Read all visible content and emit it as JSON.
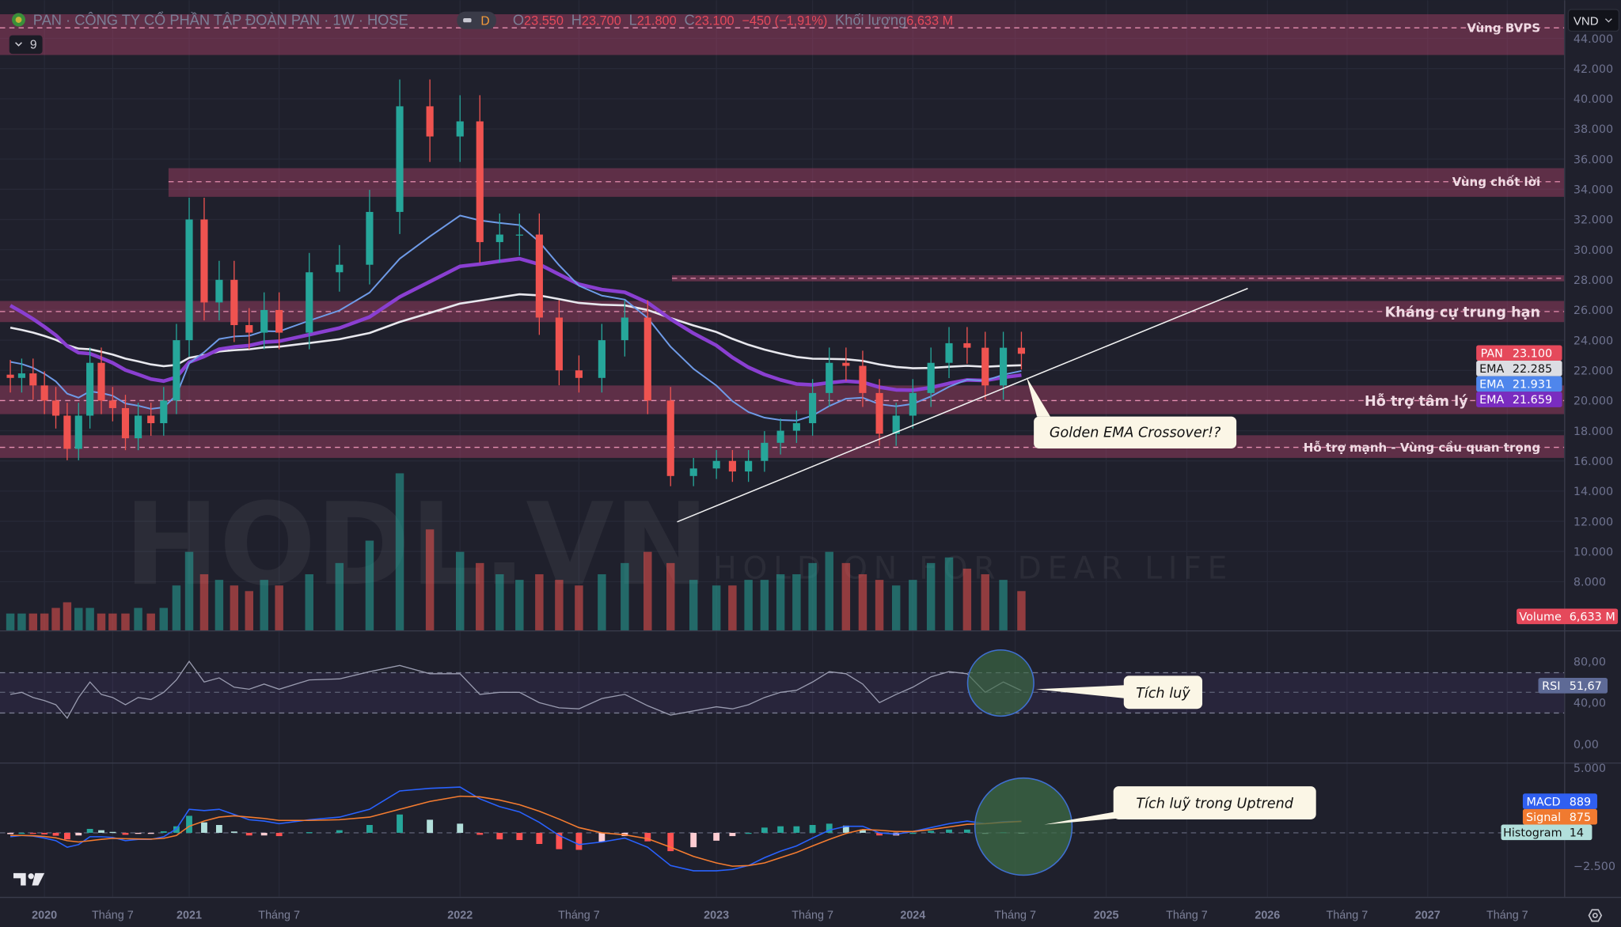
{
  "header": {
    "symbol_line": "PAN · CÔNG TY CỔ PHẦN TẬP ĐOÀN PAN · 1W · HOSE",
    "badge": "D",
    "open_label": "O",
    "open": "23.550",
    "high_label": "H",
    "high": "23.700",
    "low_label": "L",
    "low": "21.800",
    "close_label": "C",
    "close": "23.100",
    "change": "−450 (−1,91%)",
    "volume_label": "Khối lượng",
    "volume": "6,633 M",
    "collapse_count": "9",
    "currency": "VND"
  },
  "colors": {
    "up": "#26a69a",
    "down": "#ef5350",
    "zone": "#b4466e",
    "ema_fast": "#6f9be8",
    "ema_mid": "#8a3fd1",
    "ema_slow": "#e8e8ee",
    "macd": "#2962ff",
    "signal": "#f57c30",
    "circle_fill": "#3d6b45",
    "circle_stroke": "#3f6fd0"
  },
  "zones": [
    {
      "label": "Vùng BVPS",
      "from": 42900,
      "to": 45600,
      "line": 44700
    },
    {
      "label": "Vùng chốt lời",
      "from": 33500,
      "to": 35400,
      "line": 34500
    },
    {
      "label": "",
      "from": 27900,
      "to": 28300,
      "line": 28100
    },
    {
      "label": "Kháng cự trung hạn",
      "from": 25200,
      "to": 26600,
      "line": 25900
    },
    {
      "label": "Hỗ trợ tâm lý",
      "from": 19100,
      "to": 21000,
      "line": 20000
    },
    {
      "label": "Hỗ trợ mạnh - Vùng cầu quan trọng",
      "from": 16200,
      "to": 17700,
      "line": 16900
    }
  ],
  "annotations": {
    "golden": "Golden EMA Crossover!?",
    "rsi": "Tích luỹ",
    "macd": "Tích luỹ trong Uptrend"
  },
  "watermark": {
    "logo": "HODL.VN",
    "slogan": "HOLD ON FOR DEAR LIFE"
  },
  "price_axis": [
    "44.000",
    "42.000",
    "40.000",
    "38.000",
    "36.000",
    "34.000",
    "32.000",
    "30.000",
    "28.000",
    "26.000",
    "24.000",
    "22.000",
    "20.000",
    "18.000",
    "16.000",
    "14.000",
    "12.000",
    "10.000",
    "8.000"
  ],
  "rsi_axis": [
    "80,00",
    "40,00",
    "0,00"
  ],
  "macd_axis": [
    "5.000",
    "−2.500"
  ],
  "time_axis": [
    "2020",
    "Tháng 7",
    "2021",
    "Tháng 7",
    "2022",
    "Tháng 7",
    "2023",
    "Tháng 7",
    "2024",
    "Tháng 7",
    "2025",
    "Tháng 7",
    "2026",
    "Tháng 7",
    "2027",
    "Tháng 7"
  ],
  "price_tags": [
    {
      "name": "PAN",
      "value": "23.100",
      "color": "#e5495b",
      "text": "#ffffff"
    },
    {
      "name": "EMA",
      "value": "22.285",
      "color": "#dcdde3",
      "text": "#111111"
    },
    {
      "name": "EMA",
      "value": "21.931",
      "color": "#4f86ec",
      "text": "#ffffff"
    },
    {
      "name": "EMA",
      "value": "21.659",
      "color": "#7a2cc0",
      "text": "#ffffff"
    }
  ],
  "volume_tag": {
    "name": "Volume",
    "value": "6,633 M"
  },
  "rsi_tag": {
    "name": "RSI",
    "value": "51,67"
  },
  "macd_tags": [
    {
      "name": "MACD",
      "value": "889",
      "color": "#2f5ff0",
      "text": "#ffffff"
    },
    {
      "name": "Signal",
      "value": "875",
      "color": "#f07a30",
      "text": "#ffffff"
    },
    {
      "name": "Histogram",
      "value": "14",
      "color": "#b2dfdb",
      "text": "#111111"
    }
  ],
  "chart_data": {
    "type": "candlestick",
    "title": "PAN · CÔNG TY CỔ PHẦN TẬP ĐOÀN PAN · 1W · HOSE",
    "ylim": [
      6000,
      45000
    ],
    "grid": true,
    "dates": [
      "2019-10",
      "2019-11",
      "2019-12",
      "2020-01",
      "2020-02",
      "2020-03",
      "2020-04",
      "2020-05",
      "2020-06",
      "2020-07",
      "2020-08",
      "2020-09",
      "2020-10",
      "2020-11",
      "2020-12",
      "2021-01",
      "2021-02",
      "2021-03",
      "2021-04",
      "2021-05",
      "2021-06",
      "2021-07",
      "2021-08",
      "2021-09",
      "2021-10",
      "2021-11",
      "2021-12",
      "2022-01",
      "2022-02",
      "2022-03",
      "2022-04",
      "2022-05",
      "2022-06",
      "2022-07",
      "2022-08",
      "2022-09",
      "2022-10",
      "2022-11",
      "2022-12",
      "2023-01",
      "2023-02",
      "2023-03",
      "2023-04",
      "2023-05",
      "2023-06",
      "2023-07",
      "2023-08",
      "2023-09",
      "2023-10",
      "2023-11",
      "2023-12",
      "2024-01",
      "2024-02",
      "2024-03",
      "2024-04",
      "2024-05",
      "2024-06",
      "2024-07"
    ],
    "close": [
      21500,
      21800,
      21000,
      20000,
      19000,
      16800,
      19000,
      22500,
      20000,
      19500,
      17500,
      19000,
      18500,
      20000,
      24000,
      32000,
      26500,
      28000,
      25000,
      24500,
      26000,
      24500,
      28500,
      29000,
      32500,
      39500,
      37500,
      38500,
      30500,
      31000,
      31000,
      25500,
      22000,
      21500,
      24000,
      25500,
      20000,
      15000,
      15500,
      16000,
      15300,
      16000,
      17200,
      18000,
      18500,
      20500,
      22500,
      22300,
      20500,
      17800,
      19000,
      20500,
      22500,
      23800,
      23500,
      21000,
      23500,
      23100
    ],
    "volume_m": [
      3,
      3,
      3,
      3,
      4,
      5,
      4,
      4,
      3,
      3,
      3,
      4,
      3,
      4,
      8,
      14,
      10,
      9,
      8,
      7,
      9,
      8,
      10,
      12,
      16,
      28,
      18,
      14,
      12,
      10,
      9,
      10,
      9,
      8,
      10,
      12,
      14,
      12,
      9,
      8,
      8,
      9,
      9,
      10,
      10,
      12,
      14,
      12,
      10,
      9,
      8,
      9,
      12,
      13,
      11,
      10,
      9,
      7
    ],
    "rsi": [
      48,
      50,
      45,
      42,
      38,
      25,
      45,
      60,
      48,
      45,
      38,
      45,
      43,
      50,
      62,
      80,
      60,
      64,
      55,
      53,
      58,
      53,
      62,
      63,
      70,
      76,
      68,
      68,
      48,
      50,
      50,
      40,
      35,
      34,
      44,
      48,
      37,
      28,
      32,
      36,
      34,
      38,
      45,
      50,
      52,
      60,
      70,
      68,
      58,
      40,
      48,
      55,
      65,
      70,
      68,
      50,
      60,
      51.67
    ],
    "rsi_bands": [
      30,
      70
    ],
    "macd": [
      -300,
      -200,
      -250,
      -400,
      -600,
      -1100,
      -900,
      -300,
      -300,
      -350,
      -600,
      -500,
      -500,
      -300,
      300,
      1800,
      1700,
      1800,
      1400,
      1000,
      900,
      700,
      1000,
      1200,
      1800,
      3200,
      3400,
      3500,
      2600,
      2000,
      1600,
      800,
      -200,
      -900,
      -700,
      -400,
      -1100,
      -2500,
      -2900,
      -2900,
      -2800,
      -2500,
      -1900,
      -1400,
      -1000,
      -400,
      200,
      500,
      500,
      0,
      -100,
      100,
      400,
      700,
      900,
      700,
      850,
      889
    ],
    "signal": [
      -200,
      -200,
      -220,
      -280,
      -380,
      -600,
      -700,
      -600,
      -500,
      -420,
      -450,
      -470,
      -480,
      -420,
      -200,
      500,
      900,
      1200,
      1300,
      1200,
      1100,
      950,
      950,
      1000,
      1200,
      1800,
      2400,
      2800,
      2750,
      2500,
      2150,
      1650,
      1050,
      400,
      0,
      -150,
      -450,
      -1100,
      -1800,
      -2300,
      -2550,
      -2500,
      -2300,
      -1900,
      -1500,
      -1000,
      -500,
      -50,
      250,
      200,
      100,
      100,
      250,
      450,
      650,
      700,
      800,
      875
    ],
    "ema_last": {
      "ema_slow": 22285,
      "ema_fast": 21931,
      "ema_mid": 21659
    }
  }
}
